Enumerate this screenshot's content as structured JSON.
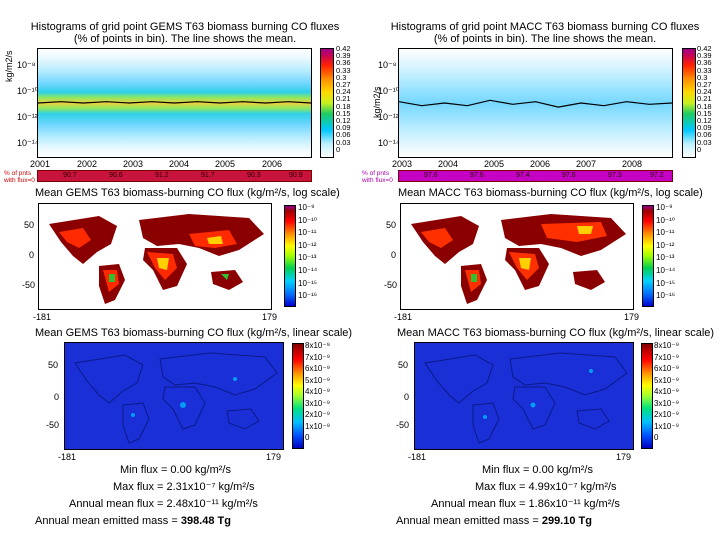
{
  "gems_hist": {
    "title1": "Histograms of grid point GEMS T63 biomass burning CO fluxes",
    "title2": "(% of points in bin). The line shows the mean.",
    "ylabel": "kg/m2/s",
    "yticks": [
      "10⁻⁸",
      "10⁻¹⁰",
      "10⁻¹²",
      "10⁻¹⁴"
    ],
    "xticks": [
      "2001",
      "2002",
      "2003",
      "2004",
      "2005",
      "2006"
    ],
    "cbar": [
      "0.42",
      "0.39",
      "0.36",
      "0.33",
      "0.3",
      "0.27",
      "0.24",
      "0.21",
      "0.18",
      "0.15",
      "0.12",
      "0.09",
      "0.06",
      "0.03",
      "0"
    ],
    "pct_label1": "% of pnts",
    "pct_label2": "with flux=0",
    "pct_values": [
      "90.7",
      "90.6",
      "91.2",
      "91.7",
      "90.3",
      "90.9"
    ]
  },
  "macc_hist": {
    "title1": "Histograms of grid point MACC T63 biomass burning CO fluxes",
    "title2": "(% of points in bin). The line shows the mean.",
    "ylabel": "kg/m2/s",
    "yticks": [
      "10⁻⁸",
      "10⁻¹⁰",
      "10⁻¹²",
      "10⁻¹⁴"
    ],
    "xticks": [
      "2003",
      "2004",
      "2005",
      "2006",
      "2007",
      "2008"
    ],
    "cbar": [
      "0.42",
      "0.39",
      "0.36",
      "0.33",
      "0.3",
      "0.27",
      "0.24",
      "0.21",
      "0.18",
      "0.15",
      "0.12",
      "0.09",
      "0.06",
      "0.03",
      "0"
    ],
    "pct_label1": "% of pnts",
    "pct_label2": "with flux=0",
    "pct_values": [
      "97.6",
      "97.6",
      "97.4",
      "97.6",
      "97.3",
      "97.2"
    ]
  },
  "gems_log": {
    "title": "Mean GEMS T63 biomass-burning CO flux (kg/m²/s, log scale)",
    "yticks": [
      "50",
      "0",
      "-50"
    ],
    "xticks": [
      "-181",
      "179"
    ],
    "cbar": [
      "10⁻⁹",
      "10⁻¹⁰",
      "10⁻¹¹",
      "10⁻¹²",
      "10⁻¹³",
      "10⁻¹⁴",
      "10⁻¹⁵",
      "10⁻¹⁶"
    ]
  },
  "macc_log": {
    "title": "Mean MACC T63 biomass-burning CO flux (kg/m²/s, log scale)",
    "yticks": [
      "50",
      "0",
      "-50"
    ],
    "xticks": [
      "-181",
      "179"
    ],
    "cbar": [
      "10⁻⁹",
      "10⁻¹⁰",
      "10⁻¹¹",
      "10⁻¹²",
      "10⁻¹³",
      "10⁻¹⁴",
      "10⁻¹⁵",
      "10⁻¹⁶"
    ]
  },
  "gems_lin": {
    "title": "Mean GEMS T63 biomass-burning CO flux (kg/m²/s, linear scale)",
    "yticks": [
      "50",
      "0",
      "-50"
    ],
    "xticks": [
      "-181",
      "179"
    ],
    "cbar": [
      "8x10⁻⁹",
      "7x10⁻⁹",
      "6x10⁻⁹",
      "5x10⁻⁹",
      "4x10⁻⁹",
      "3x10⁻⁹",
      "2x10⁻⁹",
      "1x10⁻⁹",
      "0"
    ]
  },
  "macc_lin": {
    "title": "Mean MACC T63 biomass-burning CO flux (kg/m²/s, linear scale)",
    "yticks": [
      "50",
      "0",
      "-50"
    ],
    "xticks": [
      "-181",
      "179"
    ],
    "cbar": [
      "8x10⁻⁹",
      "7x10⁻⁹",
      "6x10⁻⁹",
      "5x10⁻⁹",
      "4x10⁻⁹",
      "3x10⁻⁹",
      "2x10⁻⁹",
      "1x10⁻⁹",
      "0"
    ]
  },
  "gems_stats": {
    "min": "Min flux = 0.00 kg/m²/s",
    "max": "Max flux = 2.31x10⁻⁷ kg/m²/s",
    "annual": "Annual mean flux = 2.48x10⁻¹¹ kg/m²/s",
    "mass_label": "Annual mean emitted mass = ",
    "mass_value": "398.48 Tg"
  },
  "macc_stats": {
    "min": "Min flux = 0.00 kg/m²/s",
    "max": "Max flux = 4.99x10⁻⁷ kg/m²/s",
    "annual": "Annual mean flux = 1.86x10⁻¹¹ kg/m²/s",
    "mass_label": "Annual mean emitted mass = ",
    "mass_value": "299.10 Tg"
  },
  "chart_data": [
    {
      "type": "heatmap",
      "title": "Histograms of grid point GEMS T63 biomass burning CO fluxes (% of points in bin). The line shows the mean.",
      "xlabel": "",
      "ylabel": "kg/m2/s",
      "x_range": [
        2001,
        2007
      ],
      "y_range_log10": [
        -15,
        -7
      ],
      "colorbar_range": [
        0,
        0.42
      ],
      "series": [
        {
          "name": "mean log10 flux",
          "x": [
            2001,
            2001.5,
            2002,
            2002.5,
            2003,
            2003.5,
            2004,
            2004.5,
            2005,
            2005.5,
            2006,
            2006.5,
            2007
          ],
          "values": [
            -11.0,
            -10.9,
            -11.0,
            -10.9,
            -11.0,
            -10.9,
            -11.0,
            -10.9,
            -11.0,
            -10.9,
            -11.0,
            -10.9,
            -11.0
          ]
        }
      ],
      "pct_zero_flux": {
        "categories": [
          "2001",
          "2002",
          "2003",
          "2004",
          "2005",
          "2006"
        ],
        "values": [
          90.7,
          90.6,
          91.2,
          91.7,
          90.3,
          90.9
        ]
      }
    },
    {
      "type": "heatmap",
      "title": "Histograms of grid point MACC T63 biomass burning CO fluxes (% of points in bin). The line shows the mean.",
      "xlabel": "",
      "ylabel": "kg/m2/s",
      "x_range": [
        2003,
        2009
      ],
      "y_range_log10": [
        -15,
        -7
      ],
      "colorbar_range": [
        0,
        0.42
      ],
      "series": [
        {
          "name": "mean log10 flux",
          "x": [
            2003,
            2003.5,
            2004,
            2004.5,
            2005,
            2005.5,
            2006,
            2006.5,
            2007,
            2007.5,
            2008,
            2008.5,
            2009
          ],
          "values": [
            -10.9,
            -11.2,
            -11.0,
            -11.2,
            -10.8,
            -11.1,
            -10.9,
            -11.3,
            -11.0,
            -11.2,
            -10.9,
            -11.1,
            -11.0
          ]
        }
      ],
      "pct_zero_flux": {
        "categories": [
          "2003",
          "2004",
          "2005",
          "2006",
          "2007",
          "2008"
        ],
        "values": [
          97.6,
          97.6,
          97.4,
          97.6,
          97.3,
          97.2
        ]
      }
    },
    {
      "type": "heatmap",
      "title": "Mean GEMS T63 biomass-burning CO flux (kg/m²/s, log scale)",
      "x_range": [
        -181,
        179
      ],
      "y_range": [
        -90,
        90
      ],
      "colorbar": "log10 flux -16 to -9"
    },
    {
      "type": "heatmap",
      "title": "Mean MACC T63 biomass-burning CO flux (kg/m²/s, log scale)",
      "x_range": [
        -181,
        179
      ],
      "y_range": [
        -90,
        90
      ],
      "colorbar": "log10 flux -16 to -9"
    },
    {
      "type": "heatmap",
      "title": "Mean GEMS T63 biomass-burning CO flux (kg/m²/s, linear scale)",
      "x_range": [
        -181,
        179
      ],
      "y_range": [
        -90,
        90
      ],
      "colorbar_range": [
        0,
        8e-09
      ]
    },
    {
      "type": "heatmap",
      "title": "Mean MACC T63 biomass-burning CO flux (kg/m²/s, linear scale)",
      "x_range": [
        -181,
        179
      ],
      "y_range": [
        -90,
        90
      ],
      "colorbar_range": [
        0,
        8e-09
      ]
    }
  ]
}
